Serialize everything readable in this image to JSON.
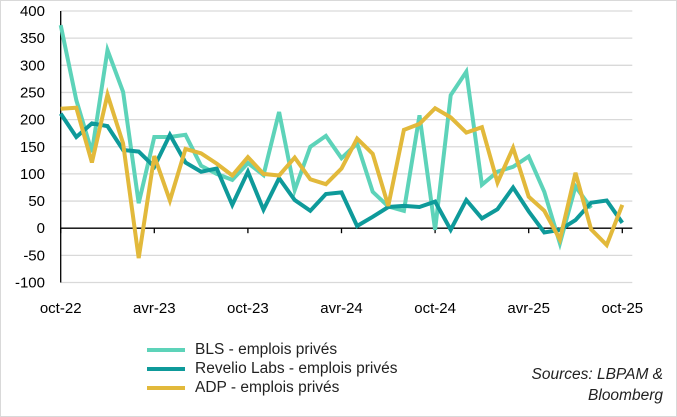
{
  "chart_data": {
    "type": "line",
    "x": [
      "oct-22",
      "nov-22",
      "déc-22",
      "janv-23",
      "févr-23",
      "mars-23",
      "avr-23",
      "mai-23",
      "juin-23",
      "juil-23",
      "août-23",
      "sept-23",
      "oct-23",
      "nov-23",
      "déc-23",
      "janv-24",
      "févr-24",
      "mars-24",
      "avr-24",
      "mai-24",
      "juin-24",
      "juil-24",
      "août-24",
      "sept-24",
      "oct-24",
      "nov-24",
      "déc-24",
      "janv-25",
      "févr-25",
      "mars-25",
      "avr-25",
      "mai-25",
      "juin-25",
      "juil-25",
      "août-25",
      "sept-25",
      "oct-25"
    ],
    "x_tick_labels": [
      "oct-22",
      "avr-23",
      "oct-23",
      "avr-24",
      "oct-24",
      "avr-25",
      "oct-25"
    ],
    "y_ticks": [
      -100,
      -50,
      0,
      50,
      100,
      150,
      200,
      250,
      300,
      350,
      400
    ],
    "ylim": [
      -100,
      400
    ],
    "grid": true,
    "legend_position": "bottom-left",
    "series": [
      {
        "name": "BLS - emplois privés",
        "color": "#5dd3b9",
        "values": [
          374,
          236,
          140,
          328,
          251,
          46,
          168,
          168,
          172,
          115,
          100,
          89,
          120,
          98,
          214,
          70,
          150,
          170,
          129,
          156,
          67,
          40,
          32,
          208,
          -3,
          245,
          288,
          80,
          104,
          113,
          132,
          67,
          -28,
          77,
          37,
          null,
          null
        ]
      },
      {
        "name": "Revelio Labs - emplois privés",
        "color": "#0e9a9a",
        "values": [
          211,
          168,
          193,
          188,
          144,
          141,
          113,
          172,
          121,
          104,
          110,
          43,
          104,
          34,
          92,
          52,
          32,
          63,
          66,
          4,
          21,
          39,
          41,
          39,
          49,
          -3,
          52,
          18,
          35,
          75,
          31,
          -8,
          -3,
          15,
          47,
          51,
          10
        ]
      },
      {
        "name": "ADP - emplois privés",
        "color": "#e2b93b",
        "values": [
          220,
          222,
          121,
          246,
          156,
          -55,
          133,
          51,
          146,
          138,
          119,
          97,
          131,
          100,
          97,
          130,
          90,
          81,
          110,
          165,
          137,
          41,
          181,
          192,
          221,
          204,
          176,
          186,
          84,
          148,
          58,
          32,
          -21,
          102,
          -2,
          -31,
          43
        ]
      }
    ]
  },
  "sources": {
    "line1": "Sources: LBPAM &",
    "line2": "Bloomberg"
  }
}
